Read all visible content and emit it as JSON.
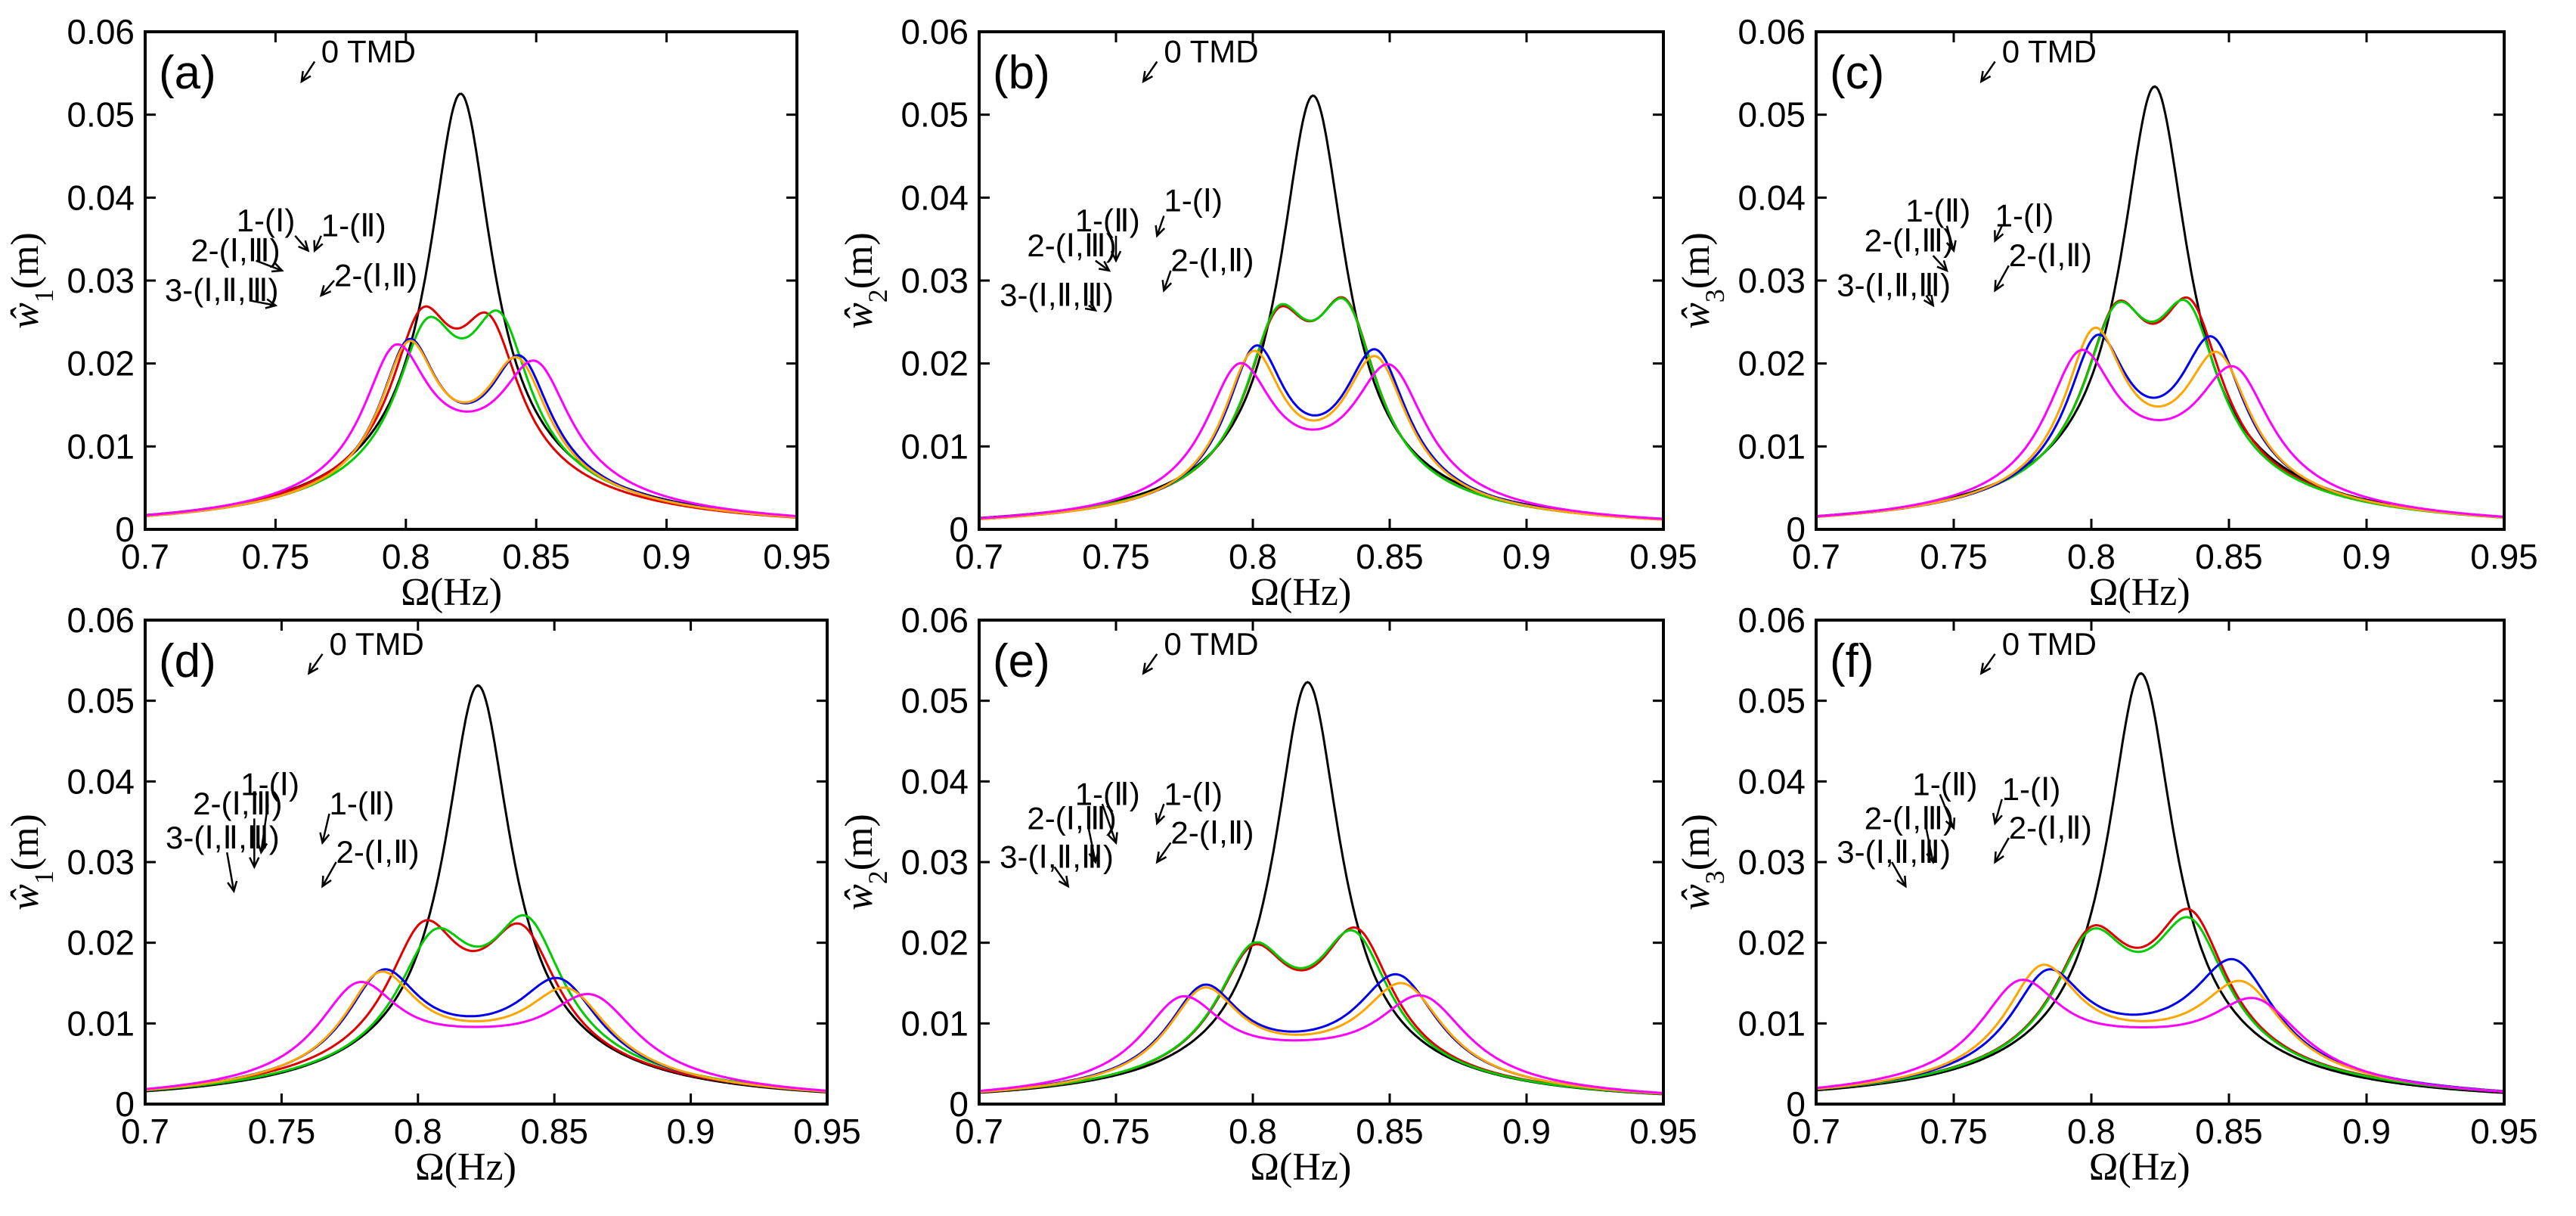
{
  "figure": {
    "x_axis_label": "Ω(Hz)",
    "x_ticks": [
      "0.7",
      "0.75",
      "0.8",
      "0.85",
      "0.9",
      "0.95"
    ],
    "y_ticks": [
      "0",
      "0.01",
      "0.02",
      "0.03",
      "0.04",
      "0.05",
      "0.06"
    ],
    "series_colors": {
      "0 TMD": "#000000",
      "1-(Ⅰ)": "#e00000",
      "1-(Ⅱ)": "#00cc00",
      "2-(Ⅰ,Ⅱ)": "#0000ee",
      "2-(Ⅰ,Ⅲ)": "#ffa500",
      "3-(Ⅰ,Ⅱ,Ⅲ)": "#ff00ff"
    }
  },
  "chart_data": [
    {
      "type": "line",
      "panel": "(a)",
      "ylabel_symbol": "ŵ",
      "ylabel_sub": "1",
      "ylabel_unit": "(m)",
      "xlabel": "Ω(Hz)",
      "xlim": [
        0.7,
        0.95
      ],
      "ylim": [
        0,
        0.06
      ],
      "series": [
        {
          "name": "0 TMD",
          "peaks": [
            {
              "f": 0.821,
              "a": 0.0455,
              "w": 0.0142
            }
          ],
          "tail": 0.0044,
          "tailw": 0.052
        },
        {
          "name": "1-(Ⅰ)",
          "peaks": [
            {
              "f": 0.806,
              "a": 0.0165,
              "w": 0.014
            },
            {
              "f": 0.832,
              "a": 0.0155,
              "w": 0.014
            }
          ],
          "tail": 0.0044,
          "tailw": 0.055
        },
        {
          "name": "1-(Ⅱ)",
          "peaks": [
            {
              "f": 0.808,
              "a": 0.0155,
              "w": 0.014
            },
            {
              "f": 0.836,
              "a": 0.0165,
              "w": 0.014
            }
          ],
          "tail": 0.0044,
          "tailw": 0.055
        },
        {
          "name": "2-(Ⅰ,Ⅱ)",
          "peaks": [
            {
              "f": 0.801,
              "a": 0.0155,
              "w": 0.013
            },
            {
              "f": 0.844,
              "a": 0.0135,
              "w": 0.014
            }
          ],
          "tail": 0.0044,
          "tailw": 0.056
        },
        {
          "name": "2-(Ⅰ,Ⅲ)",
          "peaks": [
            {
              "f": 0.801,
              "a": 0.0152,
              "w": 0.013
            },
            {
              "f": 0.843,
              "a": 0.0132,
              "w": 0.014
            }
          ],
          "tail": 0.0044,
          "tailw": 0.056
        },
        {
          "name": "3-(Ⅰ,Ⅱ,Ⅲ)",
          "peaks": [
            {
              "f": 0.796,
              "a": 0.0155,
              "w": 0.015
            },
            {
              "f": 0.85,
              "a": 0.0135,
              "w": 0.016
            }
          ],
          "tail": 0.0044,
          "tailw": 0.055
        }
      ],
      "annotations": [
        "0 TMD",
        "1-(Ⅰ)",
        "1-(Ⅱ)",
        "2-(Ⅰ,Ⅲ)",
        "2-(Ⅰ,Ⅱ)",
        "3-(Ⅰ,Ⅱ,Ⅲ)"
      ]
    },
    {
      "type": "line",
      "panel": "(b)",
      "ylabel_symbol": "ŵ",
      "ylabel_sub": "2",
      "ylabel_unit": "(m)",
      "xlabel": "Ω(Hz)",
      "xlim": [
        0.7,
        0.95
      ],
      "ylim": [
        0,
        0.06
      ],
      "series": [
        {
          "name": "0 TMD",
          "peaks": [
            {
              "f": 0.822,
              "a": 0.0475,
              "w": 0.0142
            }
          ],
          "tail": 0.003,
          "tailw": 0.052
        },
        {
          "name": "1-(Ⅰ)",
          "peaks": [
            {
              "f": 0.809,
              "a": 0.0175,
              "w": 0.014
            },
            {
              "f": 0.834,
              "a": 0.019,
              "w": 0.014
            }
          ],
          "tail": 0.003,
          "tailw": 0.055
        },
        {
          "name": "1-(Ⅱ)",
          "peaks": [
            {
              "f": 0.809,
              "a": 0.0178,
              "w": 0.014
            },
            {
              "f": 0.834,
              "a": 0.0188,
              "w": 0.014
            }
          ],
          "tail": 0.003,
          "tailw": 0.055
        },
        {
          "name": "2-(Ⅰ,Ⅱ)",
          "peaks": [
            {
              "f": 0.801,
              "a": 0.0165,
              "w": 0.013
            },
            {
              "f": 0.845,
              "a": 0.0162,
              "w": 0.014
            }
          ],
          "tail": 0.003,
          "tailw": 0.056
        },
        {
          "name": "2-(Ⅰ,Ⅲ)",
          "peaks": [
            {
              "f": 0.8,
              "a": 0.016,
              "w": 0.013
            },
            {
              "f": 0.845,
              "a": 0.0155,
              "w": 0.014
            }
          ],
          "tail": 0.003,
          "tailw": 0.056
        },
        {
          "name": "3-(Ⅰ,Ⅱ,Ⅲ)",
          "peaks": [
            {
              "f": 0.795,
              "a": 0.015,
              "w": 0.015
            },
            {
              "f": 0.85,
              "a": 0.015,
              "w": 0.016
            }
          ],
          "tail": 0.003,
          "tailw": 0.055
        }
      ],
      "annotations": [
        "0 TMD",
        "1-(Ⅱ)",
        "1-(Ⅰ)",
        "2-(Ⅰ,Ⅲ)",
        "2-(Ⅰ,Ⅱ)",
        "3-(Ⅰ,Ⅱ,Ⅲ)"
      ]
    },
    {
      "type": "line",
      "panel": "(c)",
      "ylabel_symbol": "ŵ",
      "ylabel_sub": "3",
      "ylabel_unit": "(m)",
      "xlabel": "Ω(Hz)",
      "xlim": [
        0.7,
        0.95
      ],
      "ylim": [
        0,
        0.06
      ],
      "series": [
        {
          "name": "0 TMD",
          "peaks": [
            {
              "f": 0.823,
              "a": 0.047,
              "w": 0.0142
            }
          ],
          "tail": 0.004,
          "tailw": 0.052
        },
        {
          "name": "1-(Ⅰ)",
          "peaks": [
            {
              "f": 0.809,
              "a": 0.0175,
              "w": 0.014
            },
            {
              "f": 0.836,
              "a": 0.018,
              "w": 0.014
            }
          ],
          "tail": 0.004,
          "tailw": 0.055
        },
        {
          "name": "1-(Ⅱ)",
          "peaks": [
            {
              "f": 0.809,
              "a": 0.0172,
              "w": 0.014
            },
            {
              "f": 0.835,
              "a": 0.0175,
              "w": 0.014
            }
          ],
          "tail": 0.004,
          "tailw": 0.055
        },
        {
          "name": "2-(Ⅰ,Ⅱ)",
          "peaks": [
            {
              "f": 0.802,
              "a": 0.0162,
              "w": 0.013
            },
            {
              "f": 0.844,
              "a": 0.0162,
              "w": 0.014
            }
          ],
          "tail": 0.004,
          "tailw": 0.056
        },
        {
          "name": "2-(Ⅰ,Ⅲ)",
          "peaks": [
            {
              "f": 0.801,
              "a": 0.0175,
              "w": 0.013
            },
            {
              "f": 0.846,
              "a": 0.0145,
              "w": 0.014
            }
          ],
          "tail": 0.004,
          "tailw": 0.056
        },
        {
          "name": "3-(Ⅰ,Ⅱ,Ⅲ)",
          "peaks": [
            {
              "f": 0.796,
              "a": 0.0155,
              "w": 0.015
            },
            {
              "f": 0.852,
              "a": 0.0135,
              "w": 0.016
            }
          ],
          "tail": 0.004,
          "tailw": 0.055
        }
      ],
      "annotations": [
        "0 TMD",
        "1-(Ⅱ)",
        "1-(Ⅰ)",
        "2-(Ⅰ,Ⅲ)",
        "2-(Ⅰ,Ⅱ)",
        "3-(Ⅰ,Ⅱ,Ⅲ)"
      ]
    },
    {
      "type": "line",
      "panel": "(d)",
      "ylabel_symbol": "ŵ",
      "ylabel_sub": "1",
      "ylabel_unit": "(m)",
      "xlabel": "Ω(Hz)",
      "xlim": [
        0.7,
        0.95
      ],
      "ylim": [
        0,
        0.06
      ],
      "series": [
        {
          "name": "0 TMD",
          "peaks": [
            {
              "f": 0.822,
              "a": 0.0455,
              "w": 0.0142
            }
          ],
          "tail": 0.004,
          "tailw": 0.052
        },
        {
          "name": "1-(Ⅰ)",
          "peaks": [
            {
              "f": 0.802,
              "a": 0.0145,
              "w": 0.016
            },
            {
              "f": 0.838,
              "a": 0.014,
              "w": 0.016
            }
          ],
          "tail": 0.004,
          "tailw": 0.06
        },
        {
          "name": "1-(Ⅱ)",
          "peaks": [
            {
              "f": 0.806,
              "a": 0.013,
              "w": 0.016
            },
            {
              "f": 0.84,
              "a": 0.015,
              "w": 0.016
            }
          ],
          "tail": 0.004,
          "tailw": 0.06
        },
        {
          "name": "2-(Ⅰ,Ⅱ)",
          "peaks": [
            {
              "f": 0.787,
              "a": 0.011,
              "w": 0.016
            },
            {
              "f": 0.852,
              "a": 0.01,
              "w": 0.018
            }
          ],
          "tail": 0.004,
          "tailw": 0.06
        },
        {
          "name": "2-(Ⅰ,Ⅲ)",
          "peaks": [
            {
              "f": 0.786,
              "a": 0.011,
              "w": 0.016
            },
            {
              "f": 0.855,
              "a": 0.009,
              "w": 0.018
            }
          ],
          "tail": 0.004,
          "tailw": 0.06
        },
        {
          "name": "3-(Ⅰ,Ⅱ,Ⅲ)",
          "peaks": [
            {
              "f": 0.778,
              "a": 0.0105,
              "w": 0.018
            },
            {
              "f": 0.864,
              "a": 0.009,
              "w": 0.02
            }
          ],
          "tail": 0.004,
          "tailw": 0.058
        }
      ],
      "annotations": [
        "0 TMD",
        "1-(Ⅰ)",
        "1-(Ⅱ)",
        "2-(Ⅰ,Ⅲ)",
        "2-(Ⅰ,Ⅱ)",
        "3-(Ⅰ,Ⅱ,Ⅲ)"
      ]
    },
    {
      "type": "line",
      "panel": "(e)",
      "ylabel_symbol": "ŵ",
      "ylabel_sub": "2",
      "ylabel_unit": "(m)",
      "xlabel": "Ω(Hz)",
      "xlim": [
        0.7,
        0.95
      ],
      "ylim": [
        0,
        0.06
      ],
      "series": [
        {
          "name": "0 TMD",
          "peaks": [
            {
              "f": 0.82,
              "a": 0.0475,
              "w": 0.0142
            }
          ],
          "tail": 0.003,
          "tailw": 0.052
        },
        {
          "name": "1-(Ⅰ)",
          "peaks": [
            {
              "f": 0.8,
              "a": 0.013,
              "w": 0.016
            },
            {
              "f": 0.838,
              "a": 0.0155,
              "w": 0.016
            }
          ],
          "tail": 0.003,
          "tailw": 0.06
        },
        {
          "name": "1-(Ⅱ)",
          "peaks": [
            {
              "f": 0.8,
              "a": 0.0132,
              "w": 0.016
            },
            {
              "f": 0.837,
              "a": 0.015,
              "w": 0.016
            }
          ],
          "tail": 0.003,
          "tailw": 0.06
        },
        {
          "name": "2-(Ⅰ,Ⅱ)",
          "peaks": [
            {
              "f": 0.782,
              "a": 0.0105,
              "w": 0.016
            },
            {
              "f": 0.853,
              "a": 0.012,
              "w": 0.018
            }
          ],
          "tail": 0.003,
          "tailw": 0.06
        },
        {
          "name": "2-(Ⅰ,Ⅲ)",
          "peaks": [
            {
              "f": 0.782,
              "a": 0.0103,
              "w": 0.016
            },
            {
              "f": 0.855,
              "a": 0.011,
              "w": 0.018
            }
          ],
          "tail": 0.003,
          "tailw": 0.06
        },
        {
          "name": "3-(Ⅰ,Ⅱ,Ⅲ)",
          "peaks": [
            {
              "f": 0.774,
              "a": 0.0098,
              "w": 0.018
            },
            {
              "f": 0.862,
              "a": 0.01,
              "w": 0.02
            }
          ],
          "tail": 0.003,
          "tailw": 0.058
        }
      ],
      "annotations": [
        "0 TMD",
        "1-(Ⅱ)",
        "1-(Ⅰ)",
        "2-(Ⅰ,Ⅲ)",
        "2-(Ⅰ,Ⅱ)",
        "3-(Ⅰ,Ⅱ,Ⅲ)"
      ]
    },
    {
      "type": "line",
      "panel": "(f)",
      "ylabel_symbol": "ŵ",
      "ylabel_sub": "3",
      "ylabel_unit": "(m)",
      "xlabel": "Ω(Hz)",
      "xlim": [
        0.7,
        0.95
      ],
      "ylim": [
        0,
        0.06
      ],
      "series": [
        {
          "name": "0 TMD",
          "peaks": [
            {
              "f": 0.818,
              "a": 0.047,
              "w": 0.0142
            }
          ],
          "tail": 0.004,
          "tailw": 0.052
        },
        {
          "name": "1-(Ⅰ)",
          "peaks": [
            {
              "f": 0.8,
              "a": 0.0135,
              "w": 0.016
            },
            {
              "f": 0.836,
              "a": 0.016,
              "w": 0.016
            }
          ],
          "tail": 0.004,
          "tailw": 0.06
        },
        {
          "name": "1-(Ⅱ)",
          "peaks": [
            {
              "f": 0.8,
              "a": 0.0133,
              "w": 0.016
            },
            {
              "f": 0.836,
              "a": 0.015,
              "w": 0.016
            }
          ],
          "tail": 0.004,
          "tailw": 0.06
        },
        {
          "name": "2-(Ⅰ,Ⅱ)",
          "peaks": [
            {
              "f": 0.784,
              "a": 0.011,
              "w": 0.016
            },
            {
              "f": 0.852,
              "a": 0.0125,
              "w": 0.018
            }
          ],
          "tail": 0.004,
          "tailw": 0.06
        },
        {
          "name": "2-(Ⅰ,Ⅲ)",
          "peaks": [
            {
              "f": 0.782,
              "a": 0.012,
              "w": 0.016
            },
            {
              "f": 0.855,
              "a": 0.01,
              "w": 0.018
            }
          ],
          "tail": 0.004,
          "tailw": 0.06
        },
        {
          "name": "3-(Ⅰ,Ⅱ,Ⅲ)",
          "peaks": [
            {
              "f": 0.774,
              "a": 0.0108,
              "w": 0.018
            },
            {
              "f": 0.86,
              "a": 0.0085,
              "w": 0.02
            }
          ],
          "tail": 0.004,
          "tailw": 0.058
        }
      ],
      "annotations": [
        "0 TMD",
        "1-(Ⅱ)",
        "1-(Ⅰ)",
        "2-(Ⅰ,Ⅲ)",
        "2-(Ⅰ,Ⅱ)",
        "3-(Ⅰ,Ⅱ,Ⅲ)"
      ]
    }
  ]
}
